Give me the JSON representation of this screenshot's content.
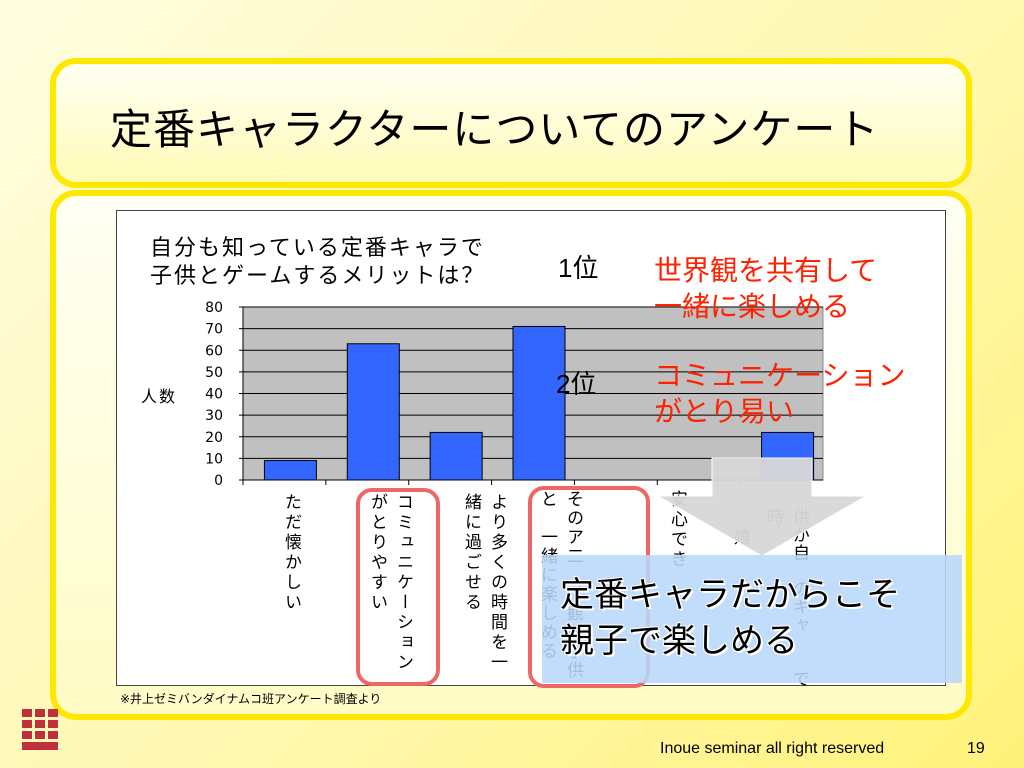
{
  "slide": {
    "title": "定番キャラクターについてのアンケート",
    "source_note": "※井上ゼミバンダイナムコ班アンケート調査より",
    "footer": "Inoue seminar all right  reserved",
    "page_number": "19",
    "logo": "seminar-logo-icon"
  },
  "chart_data": {
    "type": "bar",
    "title_line1": "自分も知っている定番キャラで",
    "title_line2": "子供とゲームするメリットは？",
    "ylabel": "人数",
    "ylim": [
      0,
      80
    ],
    "yticks": [
      "0",
      "10",
      "20",
      "30",
      "40",
      "50",
      "60",
      "70",
      "80"
    ],
    "categories": [
      "ただ懐かしい",
      "コミュニケーションがとりやすい",
      "より多くの時間を一緒に過ごせる",
      "そのアニメ、ゲームの世界観を子供と一緒に楽しめる",
      "安心できる",
      "嬉しい",
      "子供が自分の好きなキャラを知っている"
    ],
    "category_labels_visible": [
      "ただ懐かしい",
      "コミュニケーションがとりやすい",
      "より多くの時間を一緒に過ごせる",
      "そのア二　、観を子供と　一緒に楽しめる",
      "安心でき",
      "嬉",
      "供が自　のキャ　　で時"
    ],
    "values": [
      9,
      63,
      22,
      71,
      0,
      0,
      22
    ],
    "bar_color": "#3366ff",
    "plot_bg": "#c0c0c0",
    "grid": true
  },
  "annotations": {
    "rank1": "1位",
    "rank2": "2位",
    "callout1": "世界観を共有して一緒に楽しめる",
    "callout1_line1": "世界観を共有して",
    "callout1_line2": "一緒に楽しめる",
    "callout2_line1": "コミュニケーション",
    "callout2_line2": "がとり易い",
    "overlay_line1": "定番キャラだからこそ",
    "overlay_line2": "親子で楽しめる",
    "callout_color": "#ff2200",
    "highlight_color": "#ee6666",
    "overlay_color": "#b9d7fa"
  }
}
